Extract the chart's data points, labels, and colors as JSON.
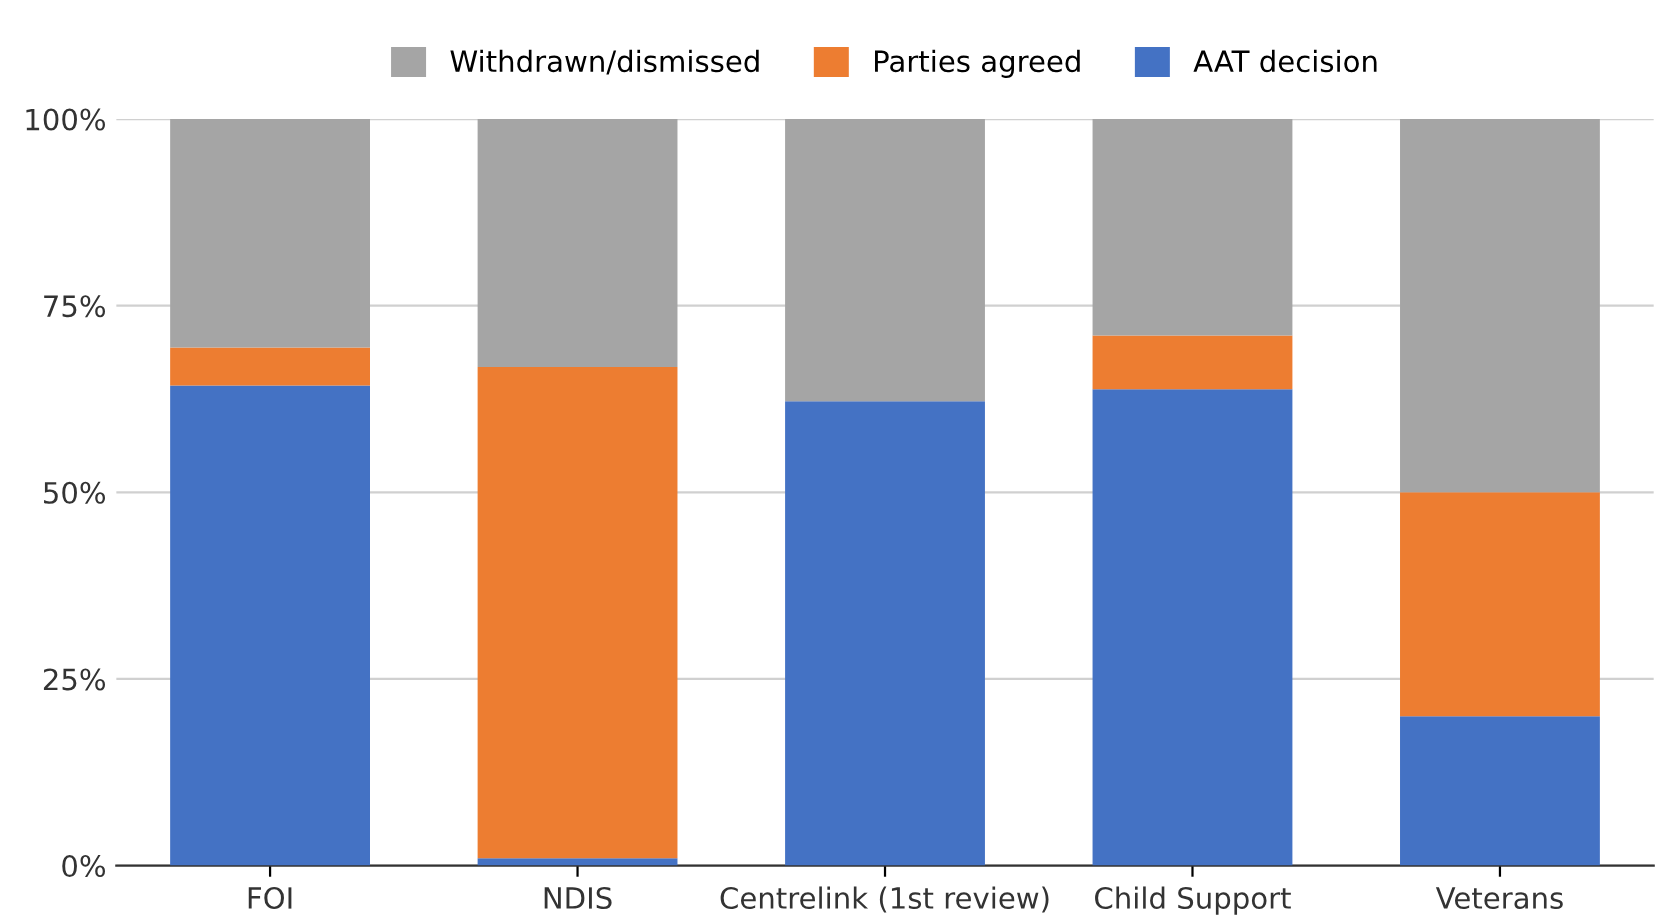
{
  "chart_data": {
    "type": "bar",
    "stacked": true,
    "categories": [
      "FOI",
      "NDIS",
      "Centrelink (1st review)",
      "Child Support",
      "Veterans"
    ],
    "series": [
      {
        "name": "AAT decision",
        "color": "#4472c4",
        "values": [
          64.3,
          1,
          62.2,
          63.8,
          20
        ]
      },
      {
        "name": "Parties agreed",
        "color": "#ed7d31",
        "values": [
          5.1,
          65.8,
          0,
          7.2,
          30
        ]
      },
      {
        "name": "Withdrawn/dismissed",
        "color": "#a5a5a5",
        "values": [
          30.6,
          33.2,
          37.8,
          29,
          50
        ]
      }
    ],
    "ylim": [
      0,
      100
    ],
    "yticks": [
      {
        "value": 0,
        "label": "0%"
      },
      {
        "value": 25,
        "label": "25%"
      },
      {
        "value": 50,
        "label": "50%"
      },
      {
        "value": 75,
        "label": "75%"
      },
      {
        "value": 100,
        "label": "100%"
      }
    ],
    "grid": "y",
    "legend": "top"
  }
}
